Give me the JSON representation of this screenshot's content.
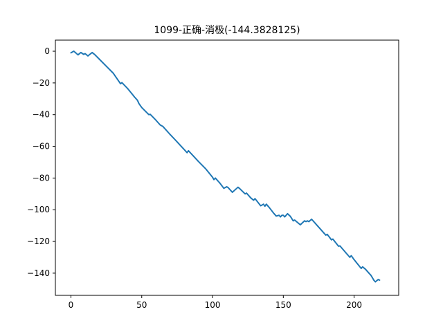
{
  "chart_data": {
    "type": "line",
    "title": "1099-正确-消极(-144.3828125)",
    "xlabel": "",
    "ylabel": "",
    "xlim": [
      -11,
      231.5
    ],
    "ylim": [
      -154,
      7
    ],
    "grid": false,
    "legend": "none",
    "x_ticks": [
      0,
      50,
      100,
      150,
      200
    ],
    "y_ticks": [
      0,
      -20,
      -40,
      -60,
      -80,
      -100,
      -120,
      -140
    ],
    "series": [
      {
        "color": "#1f77b4",
        "points": [
          [
            0,
            -1
          ],
          [
            2,
            0
          ],
          [
            4,
            -1.5
          ],
          [
            5,
            -2.3
          ],
          [
            7,
            -0.8
          ],
          [
            9,
            -2
          ],
          [
            10,
            -1.5
          ],
          [
            12,
            -3
          ],
          [
            14,
            -1.5
          ],
          [
            15,
            -0.8
          ],
          [
            17,
            -2.3
          ],
          [
            20,
            -5
          ],
          [
            25,
            -9.5
          ],
          [
            30,
            -14
          ],
          [
            35,
            -20.5
          ],
          [
            36,
            -19.8
          ],
          [
            40,
            -23.5
          ],
          [
            45,
            -29
          ],
          [
            47,
            -31
          ],
          [
            48,
            -33
          ],
          [
            50,
            -35.5
          ],
          [
            55,
            -40
          ],
          [
            56,
            -39.8
          ],
          [
            60,
            -43.5
          ],
          [
            63,
            -46.5
          ],
          [
            65,
            -47.5
          ],
          [
            70,
            -52.5
          ],
          [
            75,
            -57.2
          ],
          [
            80,
            -62
          ],
          [
            82,
            -64
          ],
          [
            83,
            -62.8
          ],
          [
            90,
            -69.5
          ],
          [
            95,
            -74
          ],
          [
            100,
            -79.5
          ],
          [
            101,
            -81
          ],
          [
            102,
            -80
          ],
          [
            105,
            -83
          ],
          [
            108,
            -86.5
          ],
          [
            110,
            -85.5
          ],
          [
            111,
            -86
          ],
          [
            114,
            -89
          ],
          [
            118,
            -85.8
          ],
          [
            119,
            -86.5
          ],
          [
            123,
            -90
          ],
          [
            124,
            -89.5
          ],
          [
            127,
            -92.5
          ],
          [
            129,
            -94
          ],
          [
            130,
            -93
          ],
          [
            134,
            -97.5
          ],
          [
            135,
            -97
          ],
          [
            136,
            -96.5
          ],
          [
            137,
            -97.8
          ],
          [
            138,
            -96.5
          ],
          [
            140,
            -98.5
          ],
          [
            143,
            -102
          ],
          [
            145,
            -104
          ],
          [
            147,
            -103.5
          ],
          [
            148,
            -104.5
          ],
          [
            149,
            -103.5
          ],
          [
            150,
            -103.5
          ],
          [
            151,
            -104.5
          ],
          [
            153,
            -102.5
          ],
          [
            155,
            -104.2
          ],
          [
            157,
            -107
          ],
          [
            158,
            -106.5
          ],
          [
            162,
            -109.5
          ],
          [
            165,
            -107
          ],
          [
            166,
            -107.5
          ],
          [
            167,
            -107
          ],
          [
            168,
            -107.5
          ],
          [
            170,
            -106
          ],
          [
            175,
            -111
          ],
          [
            180,
            -116
          ],
          [
            181,
            -115.5
          ],
          [
            184,
            -119
          ],
          [
            185,
            -118.5
          ],
          [
            189,
            -123
          ],
          [
            190,
            -122.8
          ],
          [
            195,
            -128
          ],
          [
            197,
            -130
          ],
          [
            198,
            -129
          ],
          [
            200,
            -131.5
          ],
          [
            205,
            -137
          ],
          [
            206,
            -136
          ],
          [
            208,
            -137.5
          ],
          [
            212,
            -141.5
          ],
          [
            214,
            -144.5
          ],
          [
            215,
            -145.5
          ],
          [
            217,
            -144
          ],
          [
            218,
            -144.4
          ]
        ]
      }
    ]
  }
}
